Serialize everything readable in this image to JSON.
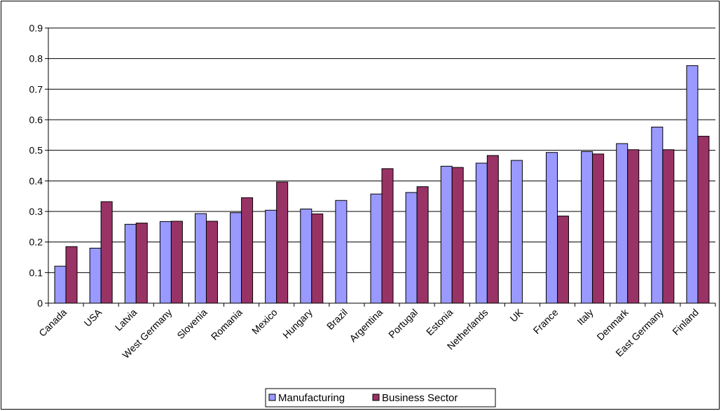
{
  "chart_data": {
    "type": "bar",
    "title": "",
    "xlabel": "",
    "ylabel": "",
    "ylim": [
      0,
      0.9
    ],
    "yticks": [
      "0",
      "0.1",
      "0.2",
      "0.3",
      "0.4",
      "0.5",
      "0.6",
      "0.7",
      "0.8",
      "0.9"
    ],
    "grid": true,
    "legend_position": "bottom",
    "categories": [
      "Canada",
      "USA",
      "Latvia",
      "West Germany",
      "Slovenia",
      "Romania",
      "Mexico",
      "Hungary",
      "Brazil",
      "Argentina",
      "Portugal",
      "Estonia",
      "Netherlands",
      "UK",
      "France",
      "Italy",
      "Denmark",
      "East Germany",
      "Finland"
    ],
    "series": [
      {
        "name": "Manufacturing",
        "color": "#9999ff",
        "values": [
          0.121,
          0.18,
          0.258,
          0.267,
          0.293,
          0.296,
          0.304,
          0.308,
          0.336,
          0.357,
          0.362,
          0.448,
          0.458,
          0.467,
          0.493,
          0.496,
          0.522,
          0.576,
          0.777
        ]
      },
      {
        "name": "Business Sector",
        "color": "#993366",
        "values": [
          0.185,
          0.332,
          0.262,
          0.268,
          0.268,
          0.345,
          0.396,
          0.292,
          null,
          0.44,
          0.381,
          0.444,
          0.483,
          null,
          0.285,
          0.488,
          0.502,
          0.502,
          0.546
        ]
      }
    ]
  }
}
